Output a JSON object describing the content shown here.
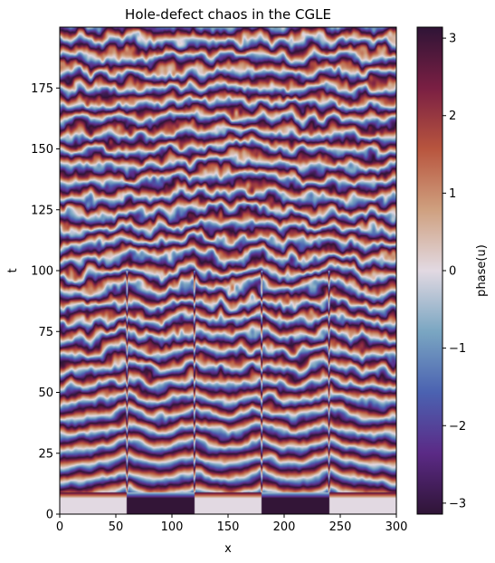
{
  "chart_data": {
    "type": "heatmap",
    "title": "Hole-defect chaos in the CGLE",
    "xlabel": "x",
    "ylabel": "t",
    "xlim": [
      0,
      300
    ],
    "ylim": [
      0,
      200
    ],
    "x_ticks": [
      0,
      50,
      100,
      150,
      200,
      250,
      300
    ],
    "y_ticks": [
      0,
      25,
      50,
      75,
      100,
      125,
      150,
      175
    ],
    "colorbar": {
      "label": "phase(u)",
      "range": [
        -3.14159,
        3.14159
      ],
      "ticks": [
        -3,
        -2,
        -1,
        0,
        1,
        2,
        3
      ],
      "tick_labels": [
        "−3",
        "−2",
        "−1",
        "0",
        "1",
        "2",
        "3"
      ],
      "colormap": "twilight_shifted",
      "colormap_stops": [
        "#2f1436",
        "#5b2a86",
        "#4b62b1",
        "#7aa6c2",
        "#e2d9e2",
        "#cfa07f",
        "#b8553e",
        "#7a1f43",
        "#2f1436"
      ]
    },
    "initial_condition": {
      "t_range": [
        0,
        9
      ],
      "segments": [
        {
          "x_range": [
            0,
            60
          ],
          "phase": 0
        },
        {
          "x_range": [
            60,
            120
          ],
          "phase": 3.1
        },
        {
          "x_range": [
            120,
            180
          ],
          "phase": 0
        },
        {
          "x_range": [
            180,
            240
          ],
          "phase": 3.1
        },
        {
          "x_range": [
            240,
            300
          ],
          "phase": 0
        }
      ]
    },
    "hole_defect_lines_x": [
      60,
      120,
      180,
      240
    ],
    "hole_defects_persist_until_t": 100,
    "wave_period_t": 6.5,
    "grid": false
  }
}
